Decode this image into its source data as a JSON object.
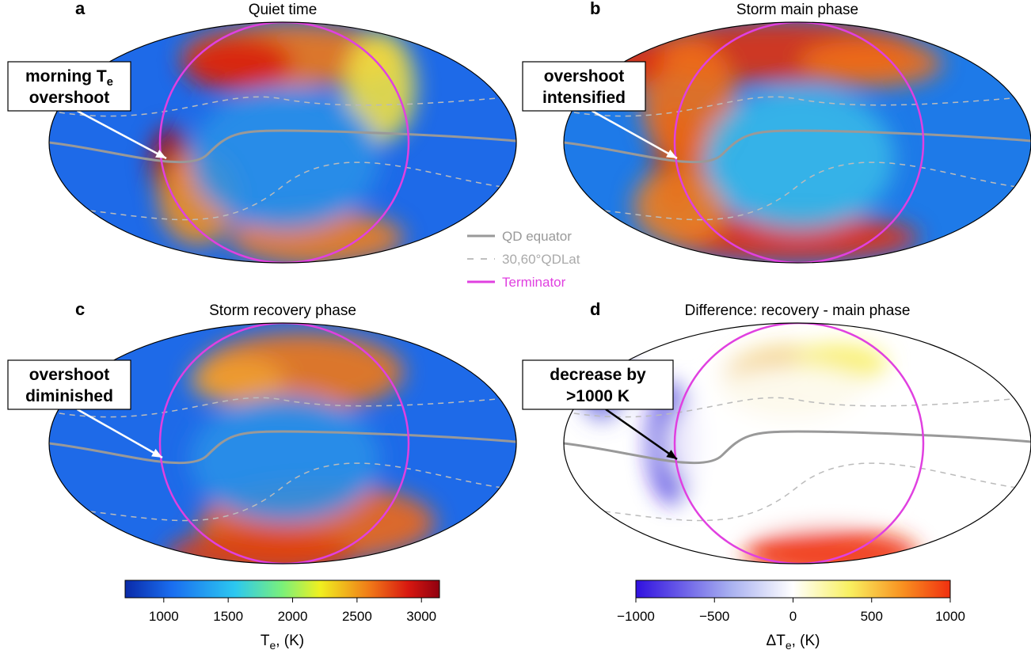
{
  "panels": [
    {
      "letter": "a",
      "title": "Quiet time",
      "annotation": [
        {
          "text": "morning T",
          "sub": "e"
        },
        {
          "text": "overshoot"
        }
      ]
    },
    {
      "letter": "b",
      "title": "Storm main phase",
      "annotation": [
        {
          "text": "overshoot"
        },
        {
          "text": "intensified"
        }
      ]
    },
    {
      "letter": "c",
      "title": "Storm recovery phase",
      "annotation": [
        {
          "text": "overshoot"
        },
        {
          "text": "diminished"
        }
      ]
    },
    {
      "letter": "d",
      "title": "Difference: recovery - main phase",
      "annotation": [
        {
          "text": "decrease by"
        },
        {
          "text": ">1000 K"
        }
      ]
    }
  ],
  "legend": [
    {
      "label": "QD equator",
      "color": "#999999"
    },
    {
      "label": "30,60°QDLat",
      "color": "#aaaaaa"
    },
    {
      "label": "Terminator",
      "color": "#e040e0"
    }
  ],
  "colorbars": [
    {
      "range": [
        700,
        3140
      ],
      "ticks": [
        1000,
        1500,
        2000,
        2500,
        3000
      ],
      "label": {
        "text": "T",
        "sub": "e",
        "after": ", (K)"
      }
    },
    {
      "range": [
        -1000,
        1000
      ],
      "ticks": [
        {
          "value": -1000,
          "label": "−1000"
        },
        {
          "value": -500,
          "label": "−500"
        },
        0,
        500,
        1000
      ],
      "label": {
        "text": "ΔT",
        "sub": "e",
        "after": ", (K)"
      }
    }
  ]
}
